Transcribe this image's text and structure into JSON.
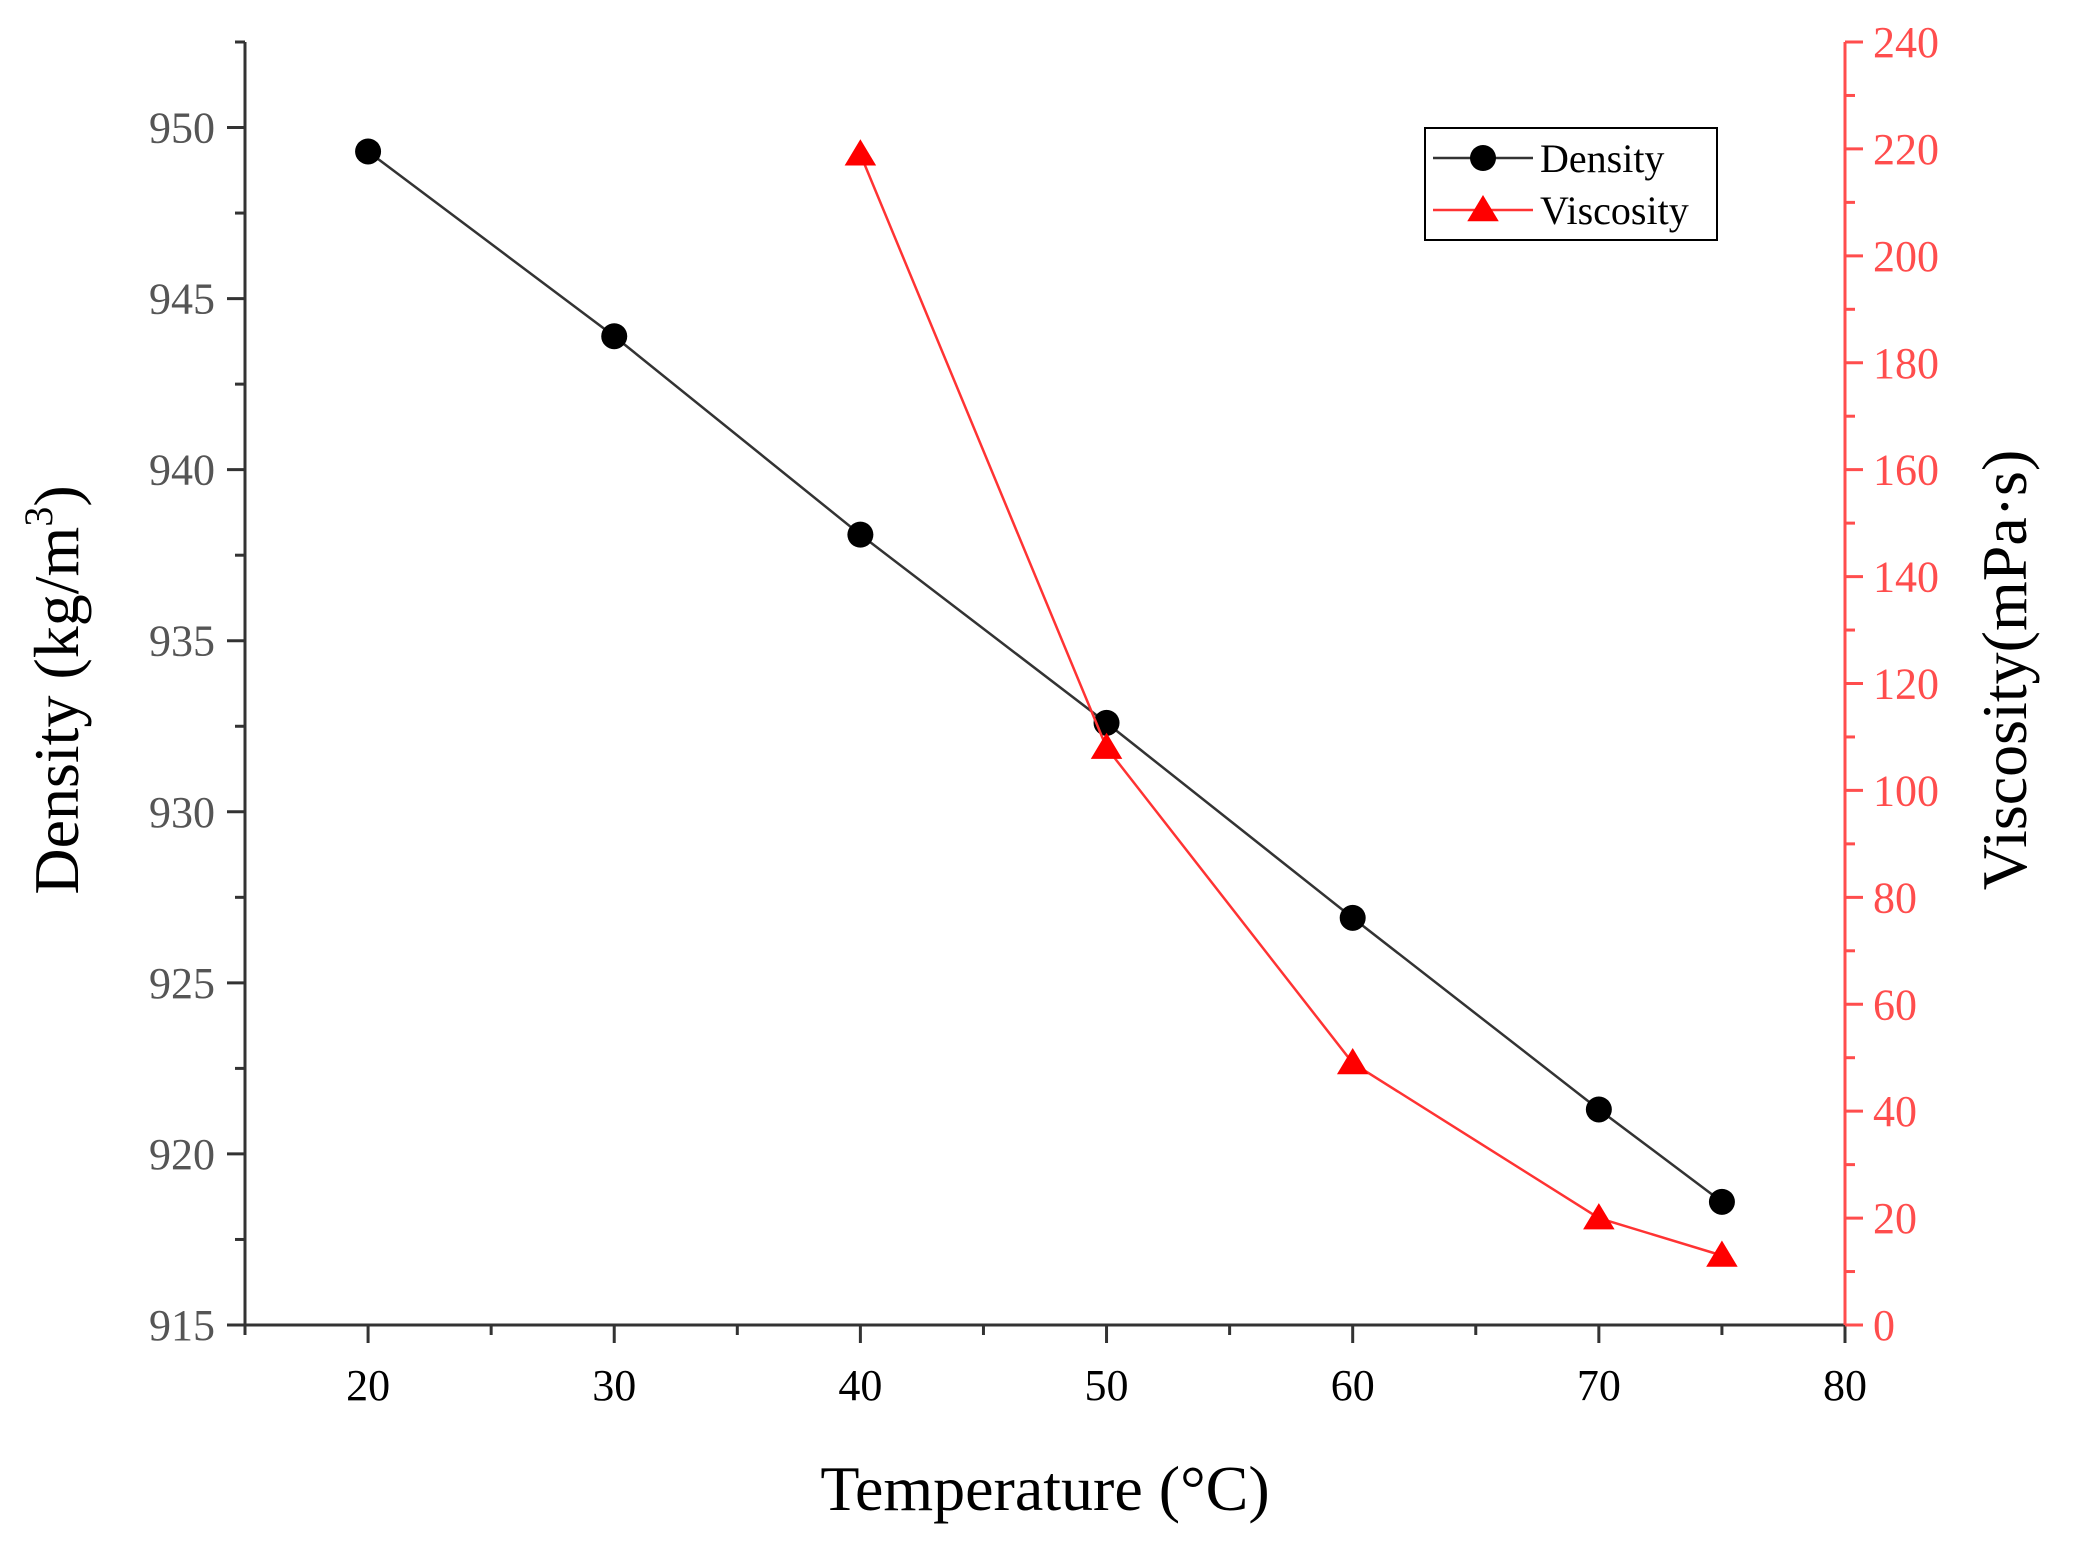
{
  "chart_data": {
    "type": "line",
    "title": "",
    "xlabel": "Temperature (°C)",
    "ylabel_left": {
      "main": "Density (kg/m",
      "sup": "3",
      "close": ")"
    },
    "ylabel_right": "Viscosity(mPa·s)",
    "xlim": [
      15,
      80
    ],
    "ylim_left": [
      915,
      952.5
    ],
    "ylim_right": [
      0,
      240
    ],
    "x_ticks": [
      20,
      30,
      40,
      50,
      60,
      70,
      80
    ],
    "y_left_ticks": [
      915,
      920,
      925,
      930,
      935,
      940,
      945,
      950
    ],
    "y_right_ticks": [
      0,
      20,
      40,
      60,
      80,
      100,
      120,
      140,
      160,
      180,
      200,
      220,
      240
    ],
    "legend_position": "top-right",
    "series": [
      {
        "name": "Density",
        "axis": "left",
        "color": "#000000",
        "line_color": "#333333",
        "marker": "circle",
        "x": [
          20,
          30,
          40,
          50,
          60,
          70,
          75
        ],
        "y": [
          949.3,
          943.9,
          938.1,
          932.6,
          926.9,
          921.3,
          918.6
        ]
      },
      {
        "name": "Viscosity",
        "axis": "right",
        "color": "#ff0000",
        "line_color": "#ff3333",
        "marker": "triangle",
        "x": [
          40,
          50,
          60,
          70,
          75
        ],
        "y": [
          219,
          108,
          49,
          20,
          13
        ]
      }
    ]
  }
}
